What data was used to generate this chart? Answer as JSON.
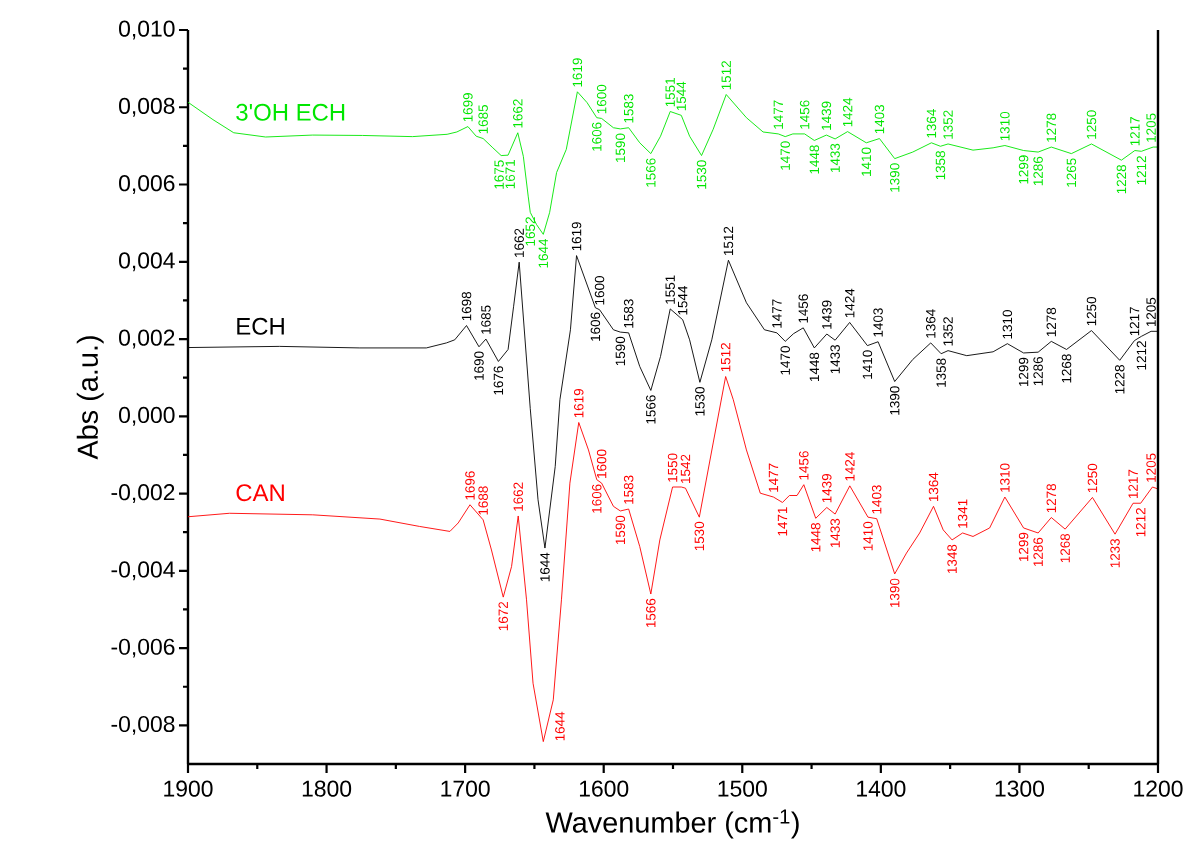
{
  "chart_data": {
    "type": "line",
    "xlabel": "Wavenumber (cm$^{-1}$)",
    "ylabel": "Abs (a.u.)",
    "xlim": [
      1900,
      1200
    ],
    "xticks": [
      1900,
      {
        "value": 1850,
        "label": null
      },
      1800,
      {
        "value": 1750,
        "label": null
      },
      1700,
      {
        "value": 1650,
        "label": null
      },
      1600,
      {
        "value": 1550,
        "label": null
      },
      1500,
      {
        "value": 1450,
        "label": null
      },
      1400,
      {
        "value": 1350,
        "label": null
      },
      1300,
      {
        "value": 1250,
        "label": null
      },
      1200
    ],
    "ylim": [
      -0.009,
      0.01
    ],
    "yticks": [
      {
        "value": -0.008,
        "label": "-0,008"
      },
      {
        "value": -0.007,
        "label": null
      },
      {
        "value": -0.006,
        "label": "-0,006"
      },
      {
        "value": -0.005,
        "label": null
      },
      {
        "value": -0.004,
        "label": "-0,004"
      },
      {
        "value": -0.003,
        "label": null
      },
      {
        "value": -0.002,
        "label": "-0,002"
      },
      {
        "value": -0.001,
        "label": null
      },
      {
        "value": 0.0,
        "label": "0,000"
      },
      {
        "value": 0.001,
        "label": null
      },
      {
        "value": 0.002,
        "label": "0,002"
      },
      {
        "value": 0.003,
        "label": null
      },
      {
        "value": 0.004,
        "label": "0,004"
      },
      {
        "value": 0.005,
        "label": null
      },
      {
        "value": 0.006,
        "label": "0,006"
      },
      {
        "value": 0.007,
        "label": null
      },
      {
        "value": 0.008,
        "label": "0,008"
      },
      {
        "value": 0.009,
        "label": null
      },
      {
        "value": 0.01,
        "label": "0,010"
      }
    ],
    "series": [
      {
        "name": "3'OH ECH",
        "color": "#00e600",
        "x": [
          1900,
          1882,
          1867,
          1844,
          1810,
          1774,
          1738,
          1713,
          1706,
          1698,
          1692,
          1687,
          1680,
          1674,
          1669,
          1662,
          1658,
          1654.5,
          1653,
          1648.4,
          1643.6,
          1639,
          1634,
          1627,
          1619,
          1612,
          1605,
          1601.5,
          1593,
          1588,
          1582,
          1574,
          1566,
          1559,
          1552,
          1544,
          1538,
          1529.4,
          1521,
          1511.6,
          1497,
          1485,
          1474,
          1469,
          1463.5,
          1455,
          1448,
          1439.3,
          1433,
          1424,
          1410.5,
          1401,
          1390,
          1377,
          1363.5,
          1357,
          1351.5,
          1333.5,
          1319,
          1310.5,
          1297,
          1286.5,
          1277,
          1262.5,
          1248,
          1226.4,
          1216.7,
          1212,
          1203.5,
          1200
        ],
        "values": [
          0.00813,
          0.00768,
          0.00734,
          0.00723,
          0.00728,
          0.00727,
          0.00724,
          0.0073,
          0.00736,
          0.0075,
          0.00725,
          0.00719,
          0.00695,
          0.00675,
          0.00676,
          0.00734,
          0.00673,
          0.0057,
          0.00528,
          0.00496,
          0.00471,
          0.00528,
          0.00631,
          0.00691,
          0.0084,
          0.00812,
          0.00773,
          0.00771,
          0.00747,
          0.00744,
          0.00747,
          0.00708,
          0.0068,
          0.00725,
          0.00789,
          0.00779,
          0.00725,
          0.00675,
          0.00743,
          0.00833,
          0.00773,
          0.00736,
          0.00731,
          0.00724,
          0.00731,
          0.00731,
          0.00714,
          0.00728,
          0.00718,
          0.00737,
          0.00708,
          0.00719,
          0.00667,
          0.00684,
          0.00708,
          0.00699,
          0.00705,
          0.00689,
          0.00695,
          0.00701,
          0.00688,
          0.00684,
          0.00697,
          0.0068,
          0.00705,
          0.00663,
          0.00688,
          0.00686,
          0.00697,
          0.00697
        ]
      },
      {
        "name": "ECH",
        "color": "#000000",
        "x": [
          1900,
          1834,
          1776,
          1728,
          1713.5,
          1707.5,
          1699,
          1690,
          1685,
          1676,
          1669,
          1665,
          1661,
          1653,
          1647.4,
          1642.4,
          1635,
          1631.6,
          1624,
          1619.6,
          1606,
          1603,
          1593,
          1588,
          1582,
          1574,
          1566,
          1559,
          1552,
          1543,
          1538,
          1530.6,
          1522,
          1510,
          1497,
          1484,
          1475,
          1469,
          1463,
          1456,
          1448,
          1439,
          1433,
          1422.5,
          1409.7,
          1402,
          1390,
          1377,
          1364,
          1356.5,
          1351.5,
          1338,
          1319,
          1308.7,
          1297,
          1286.5,
          1277,
          1266,
          1248,
          1227.6,
          1217,
          1212,
          1205,
          1200
        ],
        "values": [
          0.00178,
          0.00181,
          0.00177,
          0.00177,
          0.0019,
          0.00198,
          0.00235,
          0.0018,
          0.002,
          0.00142,
          0.00173,
          0.00285,
          0.00399,
          0.0002,
          -0.00216,
          -0.00341,
          -0.0013,
          0.00043,
          0.00224,
          0.00416,
          0.00281,
          0.00276,
          0.00224,
          0.00218,
          0.00216,
          0.00129,
          0.00067,
          0.00155,
          0.00278,
          0.0025,
          0.00198,
          0.00088,
          0.00198,
          0.00404,
          0.00294,
          0.00224,
          0.00216,
          0.00194,
          0.00214,
          0.00229,
          0.00177,
          0.00213,
          0.00197,
          0.00243,
          0.00183,
          0.00193,
          0.0009,
          0.00147,
          0.0019,
          0.00162,
          0.0017,
          0.00157,
          0.00167,
          0.00188,
          0.00164,
          0.00166,
          0.00194,
          0.00173,
          0.00222,
          0.00145,
          0.00196,
          0.00207,
          0.0022,
          0.0022
        ]
      },
      {
        "name": "CAN",
        "color": "#ff0000",
        "x": [
          1900,
          1870,
          1810,
          1761.5,
          1733,
          1711,
          1705,
          1696.5,
          1687,
          1681,
          1672.5,
          1666.5,
          1661.7,
          1655.7,
          1651,
          1643.6,
          1636.4,
          1630.5,
          1624.4,
          1618,
          1611,
          1605,
          1601.5,
          1593,
          1588,
          1582,
          1574,
          1566,
          1559.5,
          1550.3,
          1544,
          1541,
          1531,
          1521,
          1512,
          1506.5,
          1497,
          1487,
          1477.5,
          1471,
          1466,
          1460.5,
          1455.6,
          1447,
          1439,
          1433,
          1422.4,
          1409.3,
          1403,
          1390,
          1381.5,
          1372,
          1362,
          1355,
          1348.6,
          1341,
          1333.5,
          1321.5,
          1310.5,
          1297,
          1286.5,
          1277,
          1267,
          1247.3,
          1231,
          1218,
          1212.5,
          1204,
          1200
        ],
        "values": [
          -0.0026,
          -0.00251,
          -0.00255,
          -0.00266,
          -0.00285,
          -0.00298,
          -0.00276,
          -0.00229,
          -0.00268,
          -0.00346,
          -0.00468,
          -0.00389,
          -0.00258,
          -0.00475,
          -0.00691,
          -0.00842,
          -0.00734,
          -0.00475,
          -0.00173,
          -0.00016,
          -0.00087,
          -0.00164,
          -0.00173,
          -0.00233,
          -0.00245,
          -0.0024,
          -0.00337,
          -0.0046,
          -0.0032,
          -0.00183,
          -0.00183,
          -0.00186,
          -0.00261,
          -0.00069,
          0.00103,
          0.00043,
          -0.00087,
          -0.00199,
          -0.00209,
          -0.00223,
          -0.00205,
          -0.00205,
          -0.00177,
          -0.00264,
          -0.00236,
          -0.00253,
          -0.0018,
          -0.00261,
          -0.00265,
          -0.00408,
          -0.00354,
          -0.00302,
          -0.00233,
          -0.00294,
          -0.0032,
          -0.00302,
          -0.00311,
          -0.00289,
          -0.00209,
          -0.00289,
          -0.00302,
          -0.00262,
          -0.00292,
          -0.0021,
          -0.00305,
          -0.00225,
          -0.00225,
          -0.00183,
          -0.00188
        ]
      }
    ],
    "annotations": [
      {
        "text": "1699",
        "x": 1698,
        "y": 0.0075
      },
      {
        "text": "1685",
        "x": 1687,
        "y": 0.00719
      },
      {
        "text": "1662",
        "x": 1662,
        "y": 0.00734
      },
      {
        "text": "1619",
        "x": 1619,
        "y": 0.0084
      },
      {
        "text": "1600",
        "x": 1601.5,
        "y": 0.00771
      },
      {
        "text": "1583",
        "x": 1582,
        "y": 0.00747
      },
      {
        "text": "1551",
        "x": 1552,
        "y": 0.00789
      },
      {
        "text": "1544",
        "x": 1544,
        "y": 0.00779
      },
      {
        "text": "1512",
        "x": 1511.6,
        "y": 0.00833
      },
      {
        "text": "1477",
        "x": 1474,
        "y": 0.00731
      },
      {
        "text": "1456",
        "x": 1455,
        "y": 0.00731
      },
      {
        "text": "1439",
        "x": 1439.3,
        "y": 0.00728
      },
      {
        "text": "1424",
        "x": 1424,
        "y": 0.00737
      },
      {
        "text": "1403",
        "x": 1401,
        "y": 0.00719
      },
      {
        "text": "1364",
        "x": 1363.5,
        "y": 0.00708
      },
      {
        "text": "1352",
        "x": 1351.5,
        "y": 0.00705
      },
      {
        "text": "1310",
        "x": 1310.5,
        "y": 0.00701
      },
      {
        "text": "1278",
        "x": 1277,
        "y": 0.00697
      },
      {
        "text": "1250",
        "x": 1248,
        "y": 0.00705
      },
      {
        "text": "1217",
        "x": 1216.7,
        "y": 0.00688
      },
      {
        "text": "1205",
        "x": 1203.5,
        "y": 0.00697
      },
      {
        "text": "1675",
        "x": 1674,
        "y": 0.00675
      },
      {
        "text": "1671",
        "x": 1669,
        "y": 0.00676
      },
      {
        "text": "1652",
        "x": 1653,
        "y": 0.00528
      },
      {
        "text": "1644",
        "x": 1643.6,
        "y": 0.00471
      },
      {
        "text": "1606",
        "x": 1605,
        "y": 0.00773
      },
      {
        "text": "1590",
        "x": 1588,
        "y": 0.00744
      },
      {
        "text": "1566",
        "x": 1566,
        "y": 0.0068
      },
      {
        "text": "1530",
        "x": 1529.4,
        "y": 0.00675
      },
      {
        "text": "1470",
        "x": 1469,
        "y": 0.00724
      },
      {
        "text": "1448",
        "x": 1448,
        "y": 0.00714
      },
      {
        "text": "1433",
        "x": 1433,
        "y": 0.00718
      },
      {
        "text": "1410",
        "x": 1410.5,
        "y": 0.00708
      },
      {
        "text": "1390",
        "x": 1390,
        "y": 0.00667
      },
      {
        "text": "1358",
        "x": 1357,
        "y": 0.00699
      },
      {
        "text": "1299",
        "x": 1297,
        "y": 0.00688
      },
      {
        "text": "1286",
        "x": 1286.5,
        "y": 0.00684
      },
      {
        "text": "1265",
        "x": 1262.5,
        "y": 0.0068
      },
      {
        "text": "1228",
        "x": 1226.4,
        "y": 0.00663
      },
      {
        "text": "1212",
        "x": 1212,
        "y": 0.00686
      },
      {
        "text": "1698",
        "x": 1699,
        "y": 0.00235
      },
      {
        "text": "1685",
        "x": 1685,
        "y": 0.002
      },
      {
        "text": "1662",
        "x": 1661,
        "y": 0.00399
      },
      {
        "text": "1619",
        "x": 1619.6,
        "y": 0.00416
      },
      {
        "text": "1600",
        "x": 1603,
        "y": 0.00276
      },
      {
        "text": "1583",
        "x": 1582,
        "y": 0.00216
      },
      {
        "text": "1551",
        "x": 1552,
        "y": 0.00278
      },
      {
        "text": "1544",
        "x": 1543,
        "y": 0.0025
      },
      {
        "text": "1512",
        "x": 1510,
        "y": 0.00404
      },
      {
        "text": "1477",
        "x": 1475,
        "y": 0.00216
      },
      {
        "text": "1456",
        "x": 1456,
        "y": 0.00229
      },
      {
        "text": "1439",
        "x": 1439,
        "y": 0.00213
      },
      {
        "text": "1424",
        "x": 1422.5,
        "y": 0.00243
      },
      {
        "text": "1403",
        "x": 1402,
        "y": 0.00193
      },
      {
        "text": "1364",
        "x": 1364,
        "y": 0.0019
      },
      {
        "text": "1352",
        "x": 1351.5,
        "y": 0.0017
      },
      {
        "text": "1310",
        "x": 1308.7,
        "y": 0.00188
      },
      {
        "text": "1278",
        "x": 1277,
        "y": 0.00194
      },
      {
        "text": "1250",
        "x": 1248,
        "y": 0.00222
      },
      {
        "text": "1217",
        "x": 1217,
        "y": 0.00196
      },
      {
        "text": "1205",
        "x": 1205,
        "y": 0.0022
      },
      {
        "text": "1690",
        "x": 1690,
        "y": 0.0018
      },
      {
        "text": "1676",
        "x": 1676,
        "y": 0.00142
      },
      {
        "text": "1644",
        "x": 1642.4,
        "y": -0.00341
      },
      {
        "text": "1606",
        "x": 1606,
        "y": 0.00281
      },
      {
        "text": "1590",
        "x": 1588,
        "y": 0.00218
      },
      {
        "text": "1566",
        "x": 1566,
        "y": 0.00067
      },
      {
        "text": "1530",
        "x": 1530.6,
        "y": 0.00088
      },
      {
        "text": "1470",
        "x": 1469,
        "y": 0.00194
      },
      {
        "text": "1448",
        "x": 1448,
        "y": 0.00177
      },
      {
        "text": "1433",
        "x": 1433,
        "y": 0.00197
      },
      {
        "text": "1410",
        "x": 1409.7,
        "y": 0.00183
      },
      {
        "text": "1390",
        "x": 1390,
        "y": 0.0009
      },
      {
        "text": "1358",
        "x": 1356.5,
        "y": 0.00162
      },
      {
        "text": "1299",
        "x": 1297,
        "y": 0.00164
      },
      {
        "text": "1286",
        "x": 1286.5,
        "y": 0.00166
      },
      {
        "text": "1268",
        "x": 1266,
        "y": 0.00173
      },
      {
        "text": "1228",
        "x": 1227.6,
        "y": 0.00145
      },
      {
        "text": "1212",
        "x": 1212,
        "y": 0.00207
      },
      {
        "text": "1696",
        "x": 1696.5,
        "y": -0.00229
      },
      {
        "text": "1688",
        "x": 1687,
        "y": -0.00268
      },
      {
        "text": "1662",
        "x": 1661.7,
        "y": -0.00258
      },
      {
        "text": "1619",
        "x": 1618,
        "y": -0.00016
      },
      {
        "text": "1600",
        "x": 1601.5,
        "y": -0.00173
      },
      {
        "text": "1583",
        "x": 1582,
        "y": -0.0024
      },
      {
        "text": "1550",
        "x": 1550.3,
        "y": -0.00183
      },
      {
        "text": "1542",
        "x": 1541,
        "y": -0.00186
      },
      {
        "text": "1512",
        "x": 1512,
        "y": 0.00103
      },
      {
        "text": "1477",
        "x": 1477.5,
        "y": -0.00209
      },
      {
        "text": "1456",
        "x": 1455.6,
        "y": -0.00177
      },
      {
        "text": "1439",
        "x": 1439,
        "y": -0.00236
      },
      {
        "text": "1424",
        "x": 1422.4,
        "y": -0.0018
      },
      {
        "text": "1403",
        "x": 1403,
        "y": -0.00265
      },
      {
        "text": "1364",
        "x": 1362,
        "y": -0.00233
      },
      {
        "text": "1341",
        "x": 1341,
        "y": -0.00302
      },
      {
        "text": "1310",
        "x": 1310.5,
        "y": -0.00209
      },
      {
        "text": "1278",
        "x": 1277,
        "y": -0.00262
      },
      {
        "text": "1250",
        "x": 1247.3,
        "y": -0.0021
      },
      {
        "text": "1217",
        "x": 1218,
        "y": -0.00225
      },
      {
        "text": "1205",
        "x": 1204,
        "y": -0.00183
      },
      {
        "text": "1672",
        "x": 1672.5,
        "y": -0.00468
      },
      {
        "text": "1644",
        "x": 1643.6,
        "y": -0.00842
      },
      {
        "text": "1606",
        "x": 1605,
        "y": -0.00164
      },
      {
        "text": "1590",
        "x": 1588,
        "y": -0.00245
      },
      {
        "text": "1566",
        "x": 1566,
        "y": -0.0046
      },
      {
        "text": "1530",
        "x": 1531,
        "y": -0.00261
      },
      {
        "text": "1471",
        "x": 1471,
        "y": -0.00223
      },
      {
        "text": "1448",
        "x": 1447,
        "y": -0.00264
      },
      {
        "text": "1433",
        "x": 1433,
        "y": -0.00253
      },
      {
        "text": "1410",
        "x": 1409.3,
        "y": -0.00261
      },
      {
        "text": "1390",
        "x": 1390,
        "y": -0.00408
      },
      {
        "text": "1348",
        "x": 1348.6,
        "y": -0.0032
      },
      {
        "text": "1299",
        "x": 1297,
        "y": -0.00289
      },
      {
        "text": "1286",
        "x": 1286.5,
        "y": -0.00302
      },
      {
        "text": "1268",
        "x": 1267,
        "y": -0.00292
      },
      {
        "text": "1233",
        "x": 1231,
        "y": -0.00305
      },
      {
        "text": "1212",
        "x": 1212.5,
        "y": -0.00225
      }
    ]
  }
}
